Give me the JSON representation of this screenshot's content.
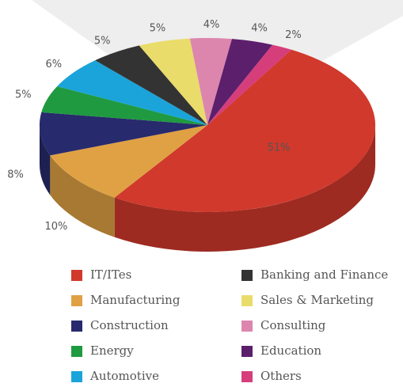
{
  "chart_data": {
    "type": "pie",
    "categories": [
      "IT/ITes",
      "Manufacturing",
      "Construction",
      "Energy",
      "Automotive",
      "Banking and Finance",
      "Sales & Marketing",
      "Consulting",
      "Education",
      "Others"
    ],
    "values": [
      51,
      10,
      8,
      5,
      6,
      5,
      5,
      4,
      4,
      2
    ],
    "value_labels": [
      "51%",
      "10%",
      "8%",
      "5%",
      "6%",
      "5%",
      "5%",
      "4%",
      "4%",
      "2%"
    ],
    "colors": [
      "#d1392c",
      "#dfa143",
      "#272a6c",
      "#1f9a40",
      "#1aa4d9",
      "#333333",
      "#e9dc6b",
      "#dc86ae",
      "#5c1f6c",
      "#d63d7b"
    ]
  }
}
